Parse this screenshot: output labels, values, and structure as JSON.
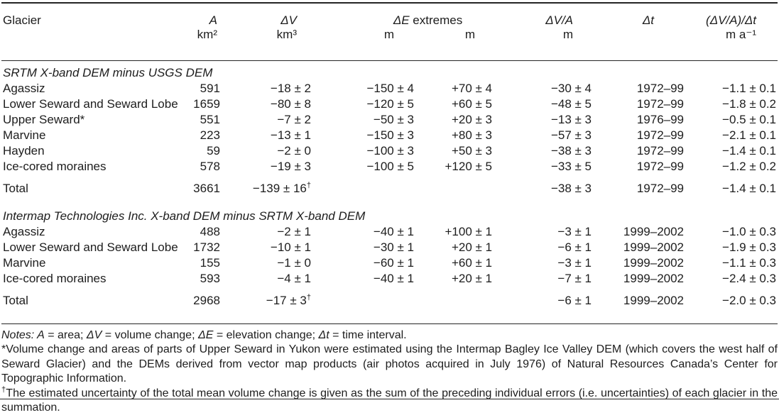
{
  "table": {
    "header": {
      "glacier": "Glacier",
      "area": "A",
      "area_unit": "km²",
      "dv": "ΔV",
      "dv_unit": "km³",
      "de_extremes": [
        {
          "t": "ΔE ",
          "i": true
        },
        {
          "t": "extremes"
        }
      ],
      "de_unit_1": "m",
      "de_unit_2": "m",
      "dva": "ΔV/A",
      "dva_unit": "m",
      "dt": "Δt",
      "rate": "(ΔV/A)/Δt",
      "rate_unit": "m a⁻¹"
    },
    "sections": [
      {
        "title": "SRTM X-band DEM minus USGS DEM",
        "rows": [
          [
            "Agassiz",
            "591",
            "−18 ± 2",
            "−150 ± 4",
            "+70 ± 4",
            "−30 ± 4",
            "1972–99",
            "−1.1 ± 0.1"
          ],
          [
            "Lower Seward and Seward Lobe",
            "1659",
            "−80 ± 8",
            "−120 ± 5",
            "+60 ± 5",
            "−48 ± 5",
            "1972–99",
            "−1.8 ± 0.2"
          ],
          [
            "Upper Seward*",
            "551",
            "−7 ± 2",
            "−50 ± 3",
            "+20 ± 3",
            "−13 ± 3",
            "1976–99",
            "−0.5 ± 0.1"
          ],
          [
            "Marvine",
            "223",
            "−13 ± 1",
            "−150 ± 3",
            "+80 ± 3",
            "−57 ± 3",
            "1972–99",
            "−2.1 ± 0.1"
          ],
          [
            "Hayden",
            "59",
            "−2 ± 0",
            "−100 ± 3",
            "+50 ± 3",
            "−38 ± 3",
            "1972–99",
            "−1.4 ± 0.1"
          ],
          [
            "Ice-cored moraines",
            "578",
            "−19 ± 3",
            "−100 ± 5",
            "+120 ± 5",
            "−33 ± 5",
            "1972–99",
            "−1.2 ± 0.2"
          ]
        ],
        "total": {
          "label": "Total",
          "area": "3661",
          "dv": [
            {
              "t": "−139 ± 16"
            },
            {
              "t": "†",
              "s": true
            }
          ],
          "dva": "−38 ± 3",
          "dt": "1972–99",
          "rate": "−1.4 ± 0.1"
        }
      },
      {
        "title": "Intermap Technologies Inc. X-band DEM minus SRTM X-band DEM",
        "rows": [
          [
            "Agassiz",
            "488",
            "−2 ± 1",
            "−40 ± 1",
            "+100 ± 1",
            "−3 ± 1",
            "1999–2002",
            "−1.0 ± 0.3"
          ],
          [
            "Lower Seward and Seward Lobe",
            "1732",
            "−10 ± 1",
            "−30 ± 1",
            "+20 ± 1",
            "−6 ± 1",
            "1999–2002",
            "−1.9 ± 0.3"
          ],
          [
            "Marvine",
            "155",
            "−1 ± 0",
            "−60 ± 1",
            "+60 ± 1",
            "−3 ± 1",
            "1999–2002",
            "−1.1 ± 0.3"
          ],
          [
            "Ice-cored moraines",
            "593",
            "−4 ± 1",
            "−40 ± 1",
            "+20 ± 1",
            "−7 ± 1",
            "1999–2002",
            "−2.4 ± 0.3"
          ]
        ],
        "total": {
          "label": "Total",
          "area": "2968",
          "dv": [
            {
              "t": "−17 ± 3"
            },
            {
              "t": "†",
              "s": true
            }
          ],
          "dva": "−6 ± 1",
          "dt": "1999–2002",
          "rate": "−2.0 ± 0.3"
        }
      }
    ]
  },
  "notes": {
    "definitions": [
      {
        "t": "Notes: ",
        "i": true
      },
      {
        "t": "A",
        "i": true
      },
      {
        "t": " = area; "
      },
      {
        "t": "ΔV",
        "i": true
      },
      {
        "t": " = volume change; "
      },
      {
        "t": "ΔE",
        "i": true
      },
      {
        "t": " = elevation change; "
      },
      {
        "t": "Δt",
        "i": true
      },
      {
        "t": " = time interval."
      }
    ],
    "asterisk": "*Volume change and areas of parts of Upper Seward in Yukon were estimated using the Intermap Bagley Ice Valley DEM (which covers the west half of Seward Glacier) and the DEMs derived from vector map products (air photos acquired in July 1976) of Natural Resources Canada’s Center for Topographic Information.",
    "dagger": [
      {
        "t": "†",
        "s": true
      },
      {
        "t": "The estimated uncertainty of the total mean volume change is given as the sum of the preceding individual errors (i.e. uncertainties) of each glacier in the summation."
      }
    ]
  }
}
